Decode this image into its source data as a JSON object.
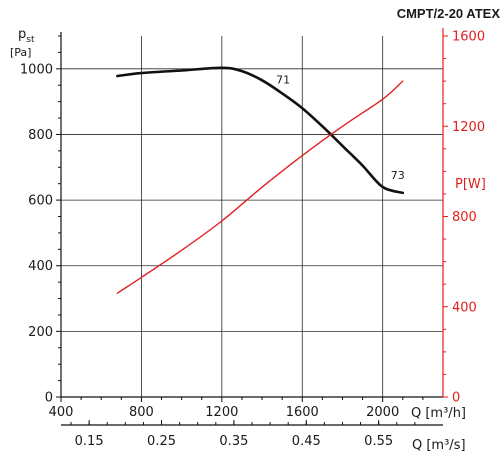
{
  "chart_data": {
    "type": "line",
    "title": "CMPT/2-20 ATEX",
    "x_axis": {
      "label": "Q [m³/h]",
      "range": [
        400,
        2300
      ],
      "ticks": [
        400,
        800,
        1200,
        1600,
        2000
      ],
      "secondary_label": "Q [m³/s]",
      "secondary_ticks": [
        "0.15",
        "0.25",
        "0.35",
        "0.45",
        "0.55"
      ]
    },
    "y_left": {
      "label": "p",
      "label_sub": "st",
      "unit": "[Pa]",
      "range": [
        0,
        1100
      ],
      "ticks": [
        0,
        200,
        400,
        600,
        800,
        1000
      ]
    },
    "y_right": {
      "label": "P[W]",
      "range": [
        0,
        1600
      ],
      "ticks": [
        0,
        400,
        800,
        1200,
        1600
      ]
    },
    "grid": true,
    "series": [
      {
        "axis": "left",
        "color": "#111111",
        "x": [
          680,
          800,
          1000,
          1200,
          1300,
          1400,
          1500,
          1600,
          1700,
          1800,
          1900,
          2000,
          2100
        ],
        "y": [
          978,
          987,
          995,
          1003,
          993,
          965,
          925,
          880,
          825,
          765,
          705,
          640,
          622
        ]
      },
      {
        "axis": "right",
        "color": "#e02020",
        "x": [
          680,
          800,
          1000,
          1200,
          1400,
          1600,
          1800,
          2000,
          2100
        ],
        "y": [
          460,
          530,
          650,
          780,
          930,
          1070,
          1200,
          1320,
          1400
        ]
      }
    ],
    "annotations": [
      {
        "text": "71",
        "x": 1470,
        "y": 955
      },
      {
        "text": "73",
        "x": 2040,
        "y": 665
      }
    ]
  }
}
